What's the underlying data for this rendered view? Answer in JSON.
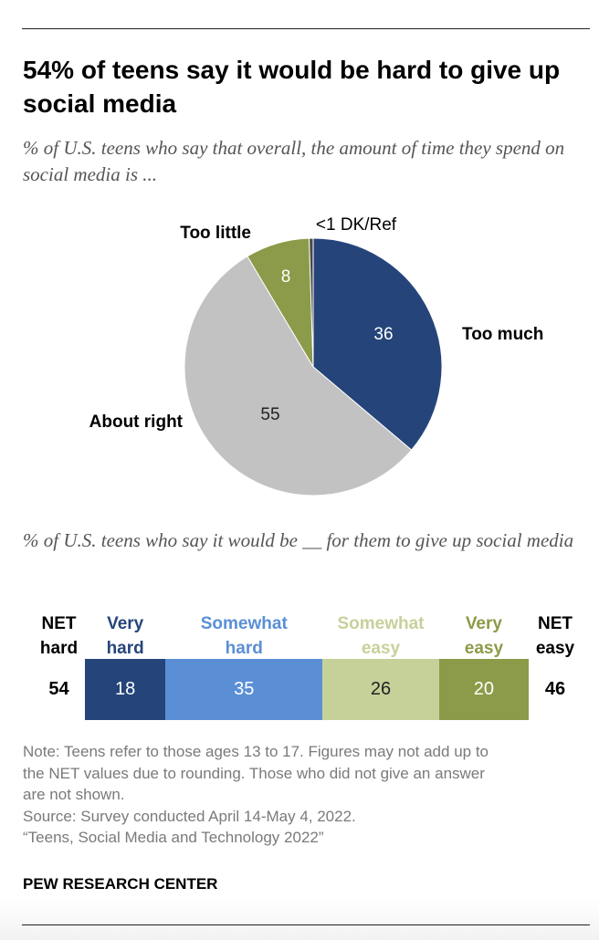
{
  "title": "54% of teens say it would be hard to give up social media",
  "subtitle1": "% of U.S. teens who say that overall, the amount of time they spend on social media is ...",
  "subtitle2": "% of U.S. teens who say it would be __ for them to give up social media",
  "colors": {
    "dark_blue": "#25457a",
    "mid_blue": "#5a8fd6",
    "olive": "#8b9b49",
    "light_olive": "#c6d19a",
    "gray": "#c2c2c2"
  },
  "chart_data": [
    {
      "type": "pie",
      "title": "% of U.S. teens who say that overall, the amount of time they spend on social media is ...",
      "slices": [
        {
          "label": "Too much",
          "value": 36,
          "value_label": "36",
          "color": "#25457a"
        },
        {
          "label": "About right",
          "value": 55,
          "value_label": "55",
          "color": "#c2c2c2"
        },
        {
          "label": "Too little",
          "value": 8,
          "value_label": "8",
          "color": "#8b9b49"
        },
        {
          "label": "DK/Ref",
          "value": 0.5,
          "value_label": "<1",
          "color": "#4a4a4a"
        }
      ],
      "start": "12 o'clock",
      "direction": "clockwise"
    },
    {
      "type": "bar",
      "orientation": "horizontal",
      "stacked": true,
      "title": "% of U.S. teens who say it would be __ for them to give up social media",
      "categories": [
        "Very hard",
        "Somewhat hard",
        "Somewhat easy",
        "Very easy"
      ],
      "header_lines": [
        [
          "Very",
          "hard"
        ],
        [
          "Somewhat",
          "hard"
        ],
        [
          "Somewhat",
          "easy"
        ],
        [
          "Very",
          "easy"
        ]
      ],
      "values": [
        18,
        35,
        26,
        20
      ],
      "colors": [
        "#25457a",
        "#5a8fd6",
        "#c6d19a",
        "#8b9b49"
      ],
      "header_colors": [
        "#25457a",
        "#5a8fd6",
        "#c6d19a",
        "#8b9b49"
      ],
      "value_colors": [
        "#ffffff",
        "#ffffff",
        "#222222",
        "#ffffff"
      ],
      "net": [
        {
          "label_lines": [
            "NET",
            "hard"
          ],
          "value": 54
        },
        {
          "label_lines": [
            "NET",
            "easy"
          ],
          "value": 46
        }
      ]
    }
  ],
  "notes": [
    "Note: Teens refer to those ages 13 to 17. Figures may not add up to",
    "the NET values due to rounding. Those who did not give an answer",
    "are not shown.",
    "Source: Survey conducted April 14-May 4, 2022.",
    "“Teens, Social Media and Technology 2022”"
  ],
  "brand": "PEW RESEARCH CENTER"
}
